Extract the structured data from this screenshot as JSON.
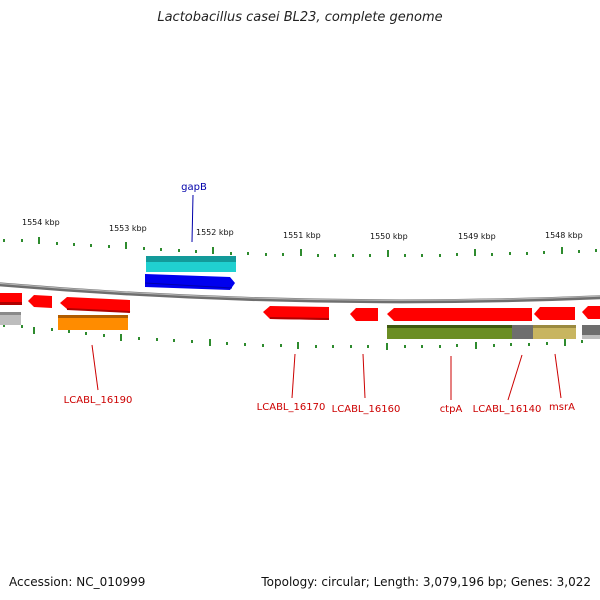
{
  "title": "Lactobacillus casei BL23, complete genome",
  "footer": {
    "accession": "Accession: NC_010999",
    "topology": "Topology: circular; Length: 3,079,196 bp; Genes: 3,022"
  },
  "ticks": [
    "1554 kbp",
    "1553 kbp",
    "1552 kbp",
    "1551 kbp",
    "1550 kbp",
    "1549 kbp",
    "1548 kbp"
  ],
  "gene_labels": {
    "gapB": "gapB",
    "lcabl_16190": "LCABL_16190",
    "lcabl_16170": "LCABL_16170",
    "lcabl_16160": "LCABL_16160",
    "ctpA": "ctpA",
    "lcabl_16140": "LCABL_16140",
    "msrA": "msrA"
  },
  "colors": {
    "backbone": "#8a8a8a",
    "forward_gene": "#ff0000",
    "cds_orange": "#ff8c00",
    "gene_cyan": "#20c8c8",
    "gene_blue": "#0000ee",
    "cds_olive": "#6b8e23",
    "cds_khaki": "#c8b560",
    "cds_grey": "#6e6e6e",
    "tick_green": "#2e8b2e",
    "label_red": "#cc0000",
    "label_blue": "#0000aa"
  }
}
